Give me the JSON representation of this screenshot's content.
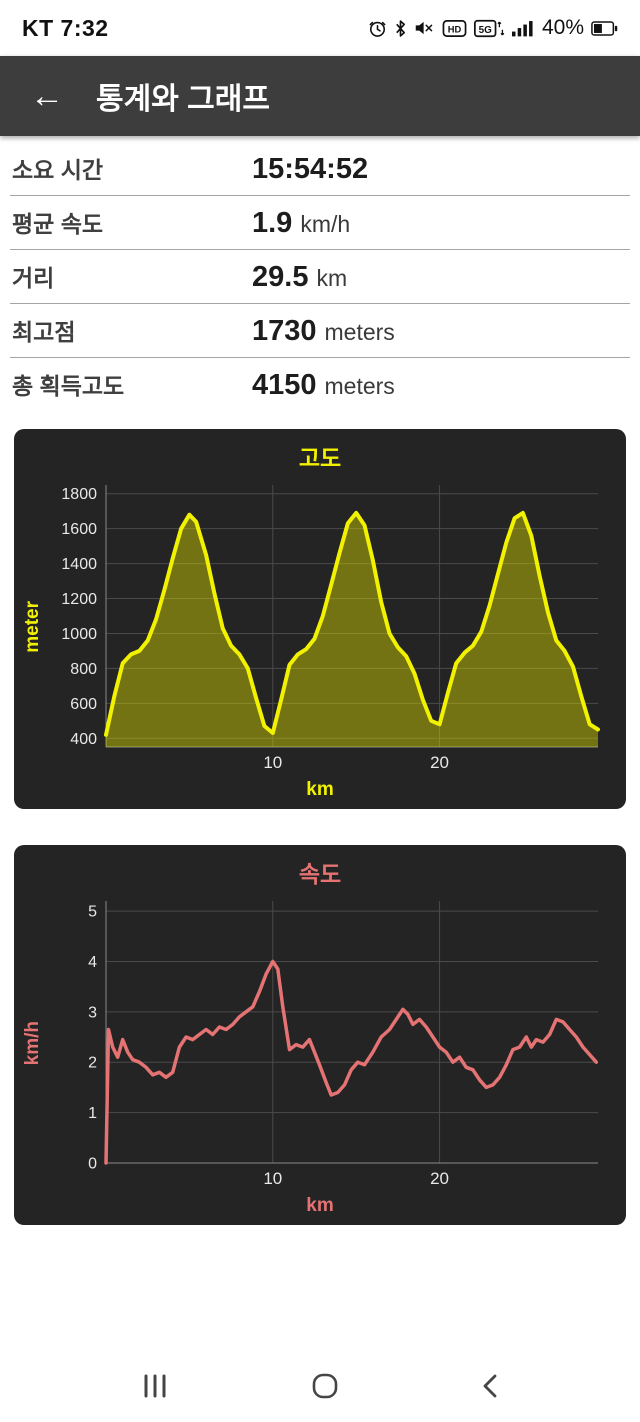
{
  "theme": {
    "header_bg": "#3d3d3d",
    "chart_bg": "#242424",
    "altitude_accent": "#f2f200",
    "speed_accent": "#e57373"
  },
  "status_bar": {
    "carrier_time": "KT 7:32",
    "battery_percent": "40%"
  },
  "header": {
    "title": "통계와 그래프"
  },
  "stats": {
    "rows": [
      {
        "label": "소요 시간",
        "value": "15:54:52",
        "unit": ""
      },
      {
        "label": "평균 속도",
        "value": "1.9",
        "unit": "km/h"
      },
      {
        "label": "거리",
        "value": "29.5",
        "unit": "km"
      },
      {
        "label": "최고점",
        "value": "1730",
        "unit": "meters"
      },
      {
        "label": "총 획득고도",
        "value": "4150",
        "unit": "meters"
      }
    ]
  },
  "chart_data": [
    {
      "type": "area",
      "title": "고도",
      "xlabel": "km",
      "ylabel": "meter",
      "xlim": [
        0,
        29.5
      ],
      "ylim": [
        350,
        1850
      ],
      "y_ticks": [
        400,
        600,
        800,
        1000,
        1200,
        1400,
        1600,
        1800
      ],
      "x_ticks": [
        10,
        20
      ],
      "grid": true,
      "line_color": "#f2f200",
      "fill_color": "rgba(212,212,0,0.45)",
      "label_color": "#f2f200",
      "tick_color": "#e8e8e8",
      "grid_color": "#4a4a4a",
      "axis_color": "#8a8a8a",
      "line_width": 4,
      "x": [
        0,
        0.5,
        1,
        1.5,
        2,
        2.5,
        3,
        3.5,
        4,
        4.5,
        5,
        5.4,
        6,
        6.5,
        7,
        7.5,
        8,
        8.5,
        9,
        9.5,
        10,
        10.5,
        11,
        11.5,
        12,
        12.5,
        13,
        13.5,
        14,
        14.5,
        15,
        15.5,
        16,
        16.5,
        17,
        17.5,
        18,
        18.5,
        19,
        19.5,
        20,
        20.5,
        21,
        21.5,
        22,
        22.5,
        23,
        23.5,
        24,
        24.5,
        25,
        25.5,
        26,
        26.5,
        27,
        27.5,
        28,
        28.5,
        29,
        29.5
      ],
      "y": [
        420,
        640,
        830,
        880,
        900,
        960,
        1080,
        1250,
        1430,
        1600,
        1680,
        1640,
        1450,
        1230,
        1030,
        930,
        880,
        800,
        630,
        470,
        430,
        620,
        820,
        880,
        910,
        970,
        1100,
        1280,
        1460,
        1630,
        1690,
        1620,
        1420,
        1180,
        1000,
        920,
        870,
        770,
        620,
        500,
        480,
        660,
        830,
        890,
        930,
        1010,
        1160,
        1340,
        1520,
        1660,
        1690,
        1560,
        1330,
        1120,
        960,
        900,
        810,
        640,
        480,
        450
      ]
    },
    {
      "type": "line",
      "title": "속도",
      "xlabel": "km",
      "ylabel": "km/h",
      "xlim": [
        0,
        29.5
      ],
      "ylim": [
        0,
        5.2
      ],
      "y_ticks": [
        0,
        1,
        2,
        3,
        4,
        5
      ],
      "x_ticks": [
        10,
        20
      ],
      "grid": true,
      "line_color": "#e57373",
      "fill_color": null,
      "label_color": "#e57373",
      "tick_color": "#e8e8e8",
      "grid_color": "#4a4a4a",
      "axis_color": "#8a8a8a",
      "line_width": 3.5,
      "x": [
        0,
        0.15,
        0.4,
        0.7,
        1,
        1.3,
        1.6,
        2,
        2.4,
        2.8,
        3.2,
        3.6,
        4,
        4.4,
        4.8,
        5.2,
        5.6,
        6,
        6.4,
        6.8,
        7.2,
        7.6,
        8,
        8.4,
        8.8,
        9.2,
        9.6,
        10,
        10.3,
        10.6,
        11,
        11.4,
        11.8,
        12.2,
        12.5,
        12.8,
        13.2,
        13.5,
        13.9,
        14.3,
        14.7,
        15.1,
        15.5,
        16,
        16.5,
        17,
        17.5,
        17.8,
        18.1,
        18.4,
        18.8,
        19.2,
        19.6,
        20,
        20.4,
        20.8,
        21.2,
        21.6,
        22,
        22.4,
        22.8,
        23.2,
        23.6,
        24,
        24.4,
        24.8,
        25.2,
        25.5,
        25.8,
        26.2,
        26.6,
        27,
        27.4,
        27.8,
        28.2,
        28.6,
        29,
        29.4
      ],
      "y": [
        0,
        2.65,
        2.3,
        2.1,
        2.45,
        2.2,
        2.05,
        2.0,
        1.9,
        1.75,
        1.8,
        1.7,
        1.8,
        2.3,
        2.5,
        2.45,
        2.55,
        2.65,
        2.55,
        2.7,
        2.65,
        2.75,
        2.9,
        3.0,
        3.1,
        3.4,
        3.75,
        4.0,
        3.85,
        3.1,
        2.25,
        2.35,
        2.3,
        2.45,
        2.2,
        1.95,
        1.6,
        1.35,
        1.4,
        1.55,
        1.85,
        2.0,
        1.95,
        2.2,
        2.5,
        2.65,
        2.9,
        3.05,
        2.95,
        2.75,
        2.85,
        2.7,
        2.5,
        2.3,
        2.2,
        2.0,
        2.1,
        1.9,
        1.85,
        1.65,
        1.5,
        1.55,
        1.7,
        1.95,
        2.25,
        2.3,
        2.5,
        2.3,
        2.45,
        2.4,
        2.55,
        2.85,
        2.8,
        2.65,
        2.5,
        2.3,
        2.15,
        2.0
      ]
    }
  ]
}
